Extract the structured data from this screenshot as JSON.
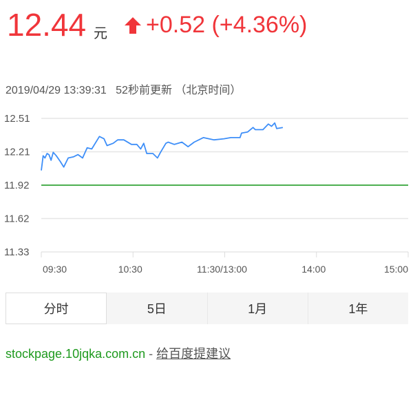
{
  "quote": {
    "price": "12.44",
    "unit": "元",
    "change": "+0.52 (+4.36%)",
    "direction": "up-arrow-icon",
    "color": "#f0353a"
  },
  "meta": {
    "timestamp": "2019/04/29 13:39:31",
    "updated": "52秒前更新",
    "timezone": "（北京时间）"
  },
  "chart_data": {
    "type": "line",
    "y_ticks": [
      "12.51",
      "12.21",
      "11.92",
      "11.62",
      "11.33"
    ],
    "ylim": [
      11.33,
      12.51
    ],
    "x_ticks": [
      {
        "label": "09:30",
        "minute": 0
      },
      {
        "label": "10:30",
        "minute": 60
      },
      {
        "label": "11:30/13:00",
        "minute": 120
      },
      {
        "label": "14:00",
        "minute": 180
      },
      {
        "label": "15:00",
        "minute": 240
      }
    ],
    "xlim_minutes": [
      0,
      240
    ],
    "prev_close": 11.92,
    "prev_close_color": "#4caf50",
    "line_color": "#3d8ef8",
    "grid": true,
    "series": [
      {
        "points": [
          [
            0,
            12.05
          ],
          [
            1.2,
            12.18
          ],
          [
            2.4,
            12.16
          ],
          [
            3.8,
            12.2
          ],
          [
            5,
            12.19
          ],
          [
            6.4,
            12.14
          ],
          [
            7.8,
            12.21
          ],
          [
            9.8,
            12.18
          ],
          [
            12.4,
            12.13
          ],
          [
            14.7,
            12.08
          ],
          [
            17.6,
            12.16
          ],
          [
            21,
            12.17
          ],
          [
            24,
            12.19
          ],
          [
            27,
            12.16
          ],
          [
            30,
            12.25
          ],
          [
            33,
            12.24
          ],
          [
            38,
            12.35
          ],
          [
            41,
            12.33
          ],
          [
            43,
            12.27
          ],
          [
            47,
            12.29
          ],
          [
            50,
            12.32
          ],
          [
            54,
            12.32
          ],
          [
            59,
            12.28
          ],
          [
            62.5,
            12.28
          ],
          [
            65,
            12.24
          ],
          [
            67,
            12.29
          ],
          [
            69,
            12.2
          ],
          [
            73,
            12.2
          ],
          [
            76,
            12.16
          ],
          [
            78,
            12.21
          ],
          [
            81.5,
            12.29
          ],
          [
            83,
            12.3
          ],
          [
            87,
            12.28
          ],
          [
            92,
            12.3
          ],
          [
            96,
            12.26
          ],
          [
            100,
            12.3
          ],
          [
            106,
            12.34
          ],
          [
            113,
            12.32
          ],
          [
            119.5,
            12.33
          ],
          [
            124,
            12.34
          ],
          [
            130,
            12.34
          ],
          [
            131,
            12.38
          ],
          [
            135,
            12.39
          ],
          [
            138.5,
            12.43
          ],
          [
            140,
            12.41
          ],
          [
            145,
            12.41
          ],
          [
            148.5,
            12.46
          ],
          [
            150.6,
            12.44
          ],
          [
            152.7,
            12.47
          ],
          [
            154,
            12.42
          ],
          [
            158,
            12.43
          ]
        ]
      }
    ]
  },
  "tabs": [
    {
      "label": "分时",
      "active": true
    },
    {
      "label": "5日"
    },
    {
      "label": "1月"
    },
    {
      "label": "1年"
    }
  ],
  "footer": {
    "site": "stockpage.10jqka.com.cn",
    "separator": " - ",
    "feedback": "给百度提建议"
  }
}
